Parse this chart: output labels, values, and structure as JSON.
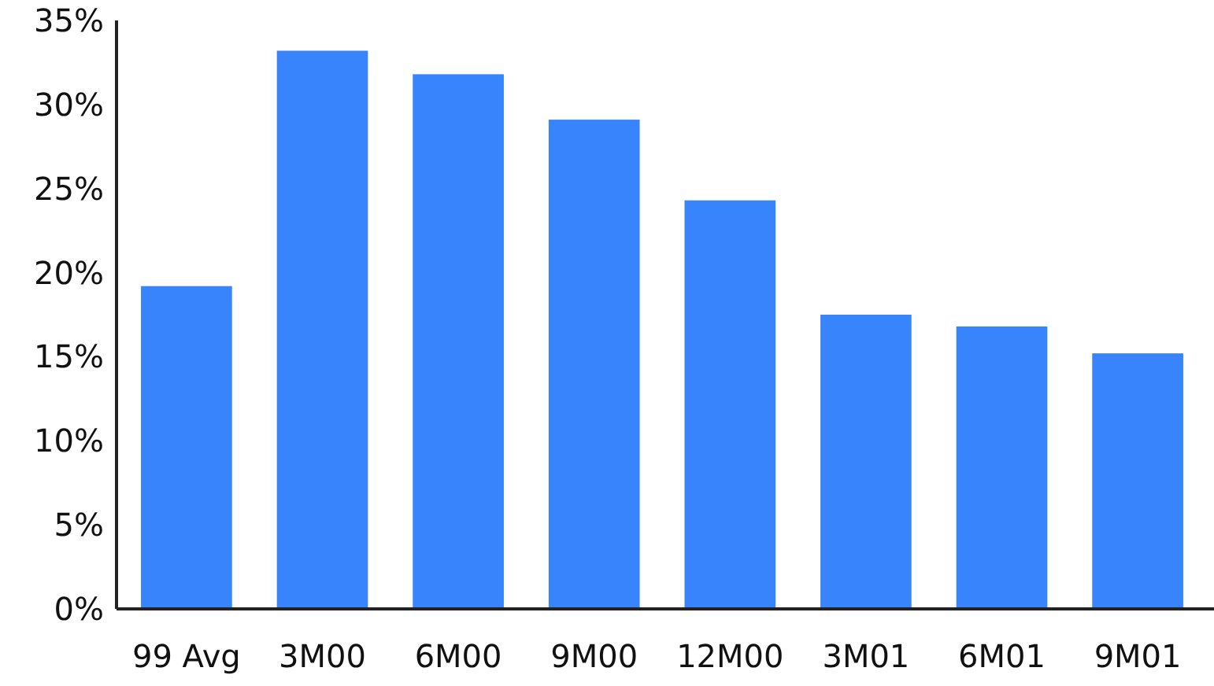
{
  "chart_data": {
    "type": "bar",
    "categories": [
      "99 Avg",
      "3M00",
      "6M00",
      "9M00",
      "12M00",
      "3M01",
      "6M01",
      "9M01"
    ],
    "values": [
      19.2,
      33.2,
      31.8,
      29.1,
      24.3,
      17.5,
      16.8,
      15.2
    ],
    "color": "#3784fd",
    "ylim": [
      0,
      35
    ],
    "yticks": [
      {
        "value": 0,
        "label": "0%"
      },
      {
        "value": 5,
        "label": "5%"
      },
      {
        "value": 10,
        "label": "10%"
      },
      {
        "value": 15,
        "label": "15%"
      },
      {
        "value": 20,
        "label": "20%"
      },
      {
        "value": 25,
        "label": "25%"
      },
      {
        "value": 30,
        "label": "30%"
      },
      {
        "value": 35,
        "label": "35%"
      }
    ],
    "grid": false
  }
}
